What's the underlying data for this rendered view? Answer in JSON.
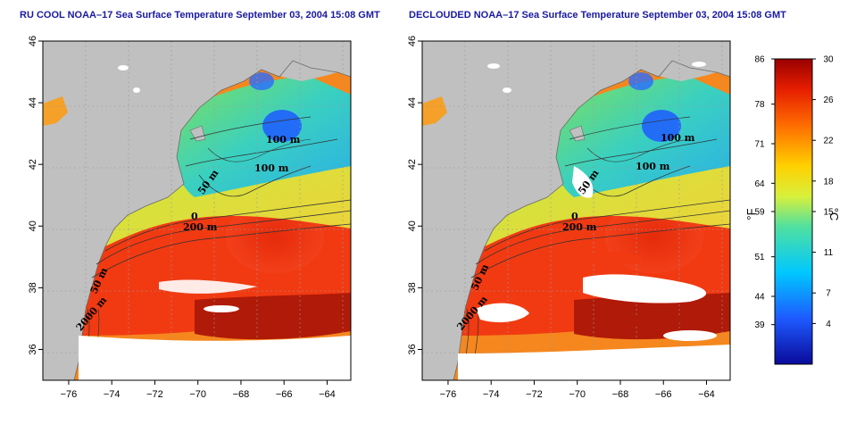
{
  "panels": [
    {
      "title": "RU COOL NOAA–17 Sea Surface Temperature September 03, 2004 15:08 GMT",
      "contour_labels": [
        "100 m",
        "100 m",
        "50 m",
        "200 m",
        "50 m",
        "2000 m",
        "0"
      ]
    },
    {
      "title": "DECLOUDED NOAA–17 Sea Surface Temperature September 03, 2004 15:08 GMT",
      "contour_labels": [
        "100 m",
        "100 m",
        "50 m",
        "200 m",
        "50 m",
        "2000 m",
        "0"
      ]
    }
  ],
  "axes": {
    "x_ticks": [
      "−76",
      "−74",
      "−72",
      "−70",
      "−68",
      "−66",
      "−64"
    ],
    "y_ticks": [
      "36",
      "38",
      "40",
      "42",
      "44",
      "46"
    ],
    "lon_range": [
      -77.2,
      -62.9
    ],
    "lat_range": [
      35.0,
      46.0
    ]
  },
  "colorbar": {
    "fahrenheit_ticks": [
      "39",
      "44",
      "51",
      "59",
      "64",
      "71",
      "78",
      "86"
    ],
    "celsius_ticks": [
      "4",
      "7",
      "11",
      "15",
      "18",
      "22",
      "26",
      "30"
    ],
    "left_unit": "°F",
    "right_unit": "°C",
    "range_c": [
      0,
      30
    ]
  },
  "colors": {
    "land": "#c0c0c0",
    "cloud": "#ffffff",
    "title": "#1a1aa0"
  }
}
